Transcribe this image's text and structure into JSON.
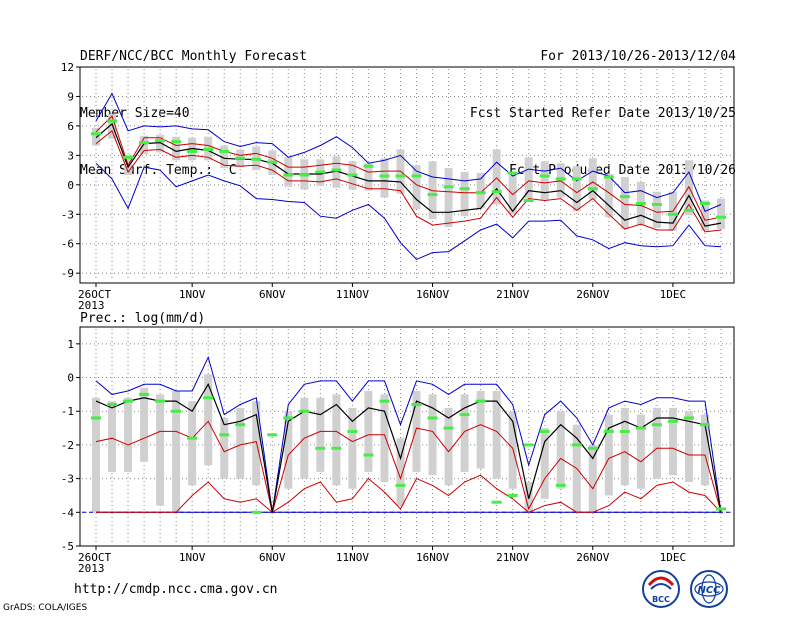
{
  "header": {
    "title": "DERF/NCC/BCC Monthly Forecast",
    "member": "Member Size=40",
    "variable": "Mean Surf. Temp.: °C",
    "period": "For 2013/10/26-2013/12/04",
    "started": "Fcst Started Refer Date 2013/10/25",
    "produced": "Fcst Produced Date 2013/10/26"
  },
  "precip_label": "Prec.: log(mm/d)",
  "footer": {
    "url": "http://cmdp.ncc.cma.gov.cn",
    "grads": "GrADS: COLA/IGES"
  },
  "logos": {
    "bcc": "BCC",
    "ncc": "NCC"
  },
  "colors": {
    "member_bar": "#d0d0d0",
    "ensemble_mean": "#000000",
    "spread_red": "#cc0000",
    "envelope_blue": "#0000cc",
    "green_marker": "#44ee44",
    "grid_dots": "#888888"
  },
  "chart_data": [
    {
      "type": "line",
      "title": "",
      "ylabel": "Mean Surf. Temp.: °C",
      "x": [
        "26OCT",
        "27OCT",
        "28OCT",
        "29OCT",
        "30OCT",
        "31OCT",
        "1NOV",
        "2NOV",
        "3NOV",
        "4NOV",
        "5NOV",
        "6NOV",
        "7NOV",
        "8NOV",
        "9NOV",
        "10NOV",
        "11NOV",
        "12NOV",
        "13NOV",
        "14NOV",
        "15NOV",
        "16NOV",
        "17NOV",
        "18NOV",
        "19NOV",
        "20NOV",
        "21NOV",
        "22NOV",
        "23NOV",
        "24NOV",
        "25NOV",
        "26NOV",
        "27NOV",
        "28NOV",
        "29NOV",
        "30NOV",
        "1DEC",
        "2DEC",
        "3DEC",
        "4DEC"
      ],
      "xtick_labels": [
        "26OCT\n2013",
        "1NOV",
        "6NOV",
        "11NOV",
        "16NOV",
        "21NOV",
        "26NOV",
        "1DEC"
      ],
      "ylim": [
        -10,
        12
      ],
      "yticks": [
        -9,
        -6,
        -3,
        0,
        3,
        6,
        9,
        12
      ],
      "grid": true,
      "series": [
        {
          "role": "upper-envelope",
          "values": [
            6.5,
            9.3,
            5.5,
            6.0,
            5.9,
            6.0,
            5.7,
            5.6,
            4.4,
            3.9,
            4.3,
            4.2,
            2.8,
            3.3,
            4.0,
            4.9,
            3.8,
            2.2,
            2.5,
            3.0,
            1.4,
            0.8,
            0.6,
            0.4,
            0.6,
            2.3,
            0.9,
            1.6,
            1.4,
            1.7,
            0.4,
            1.4,
            0.9,
            -0.8,
            -0.6,
            -1.3,
            -0.8,
            1.3,
            -2.7,
            -2.0
          ]
        },
        {
          "role": "upper-spread",
          "values": [
            5.4,
            7.0,
            2.0,
            4.8,
            4.8,
            4.0,
            4.2,
            4.0,
            3.4,
            3.0,
            3.2,
            2.7,
            1.8,
            1.8,
            2.0,
            2.2,
            2.0,
            1.3,
            1.4,
            1.4,
            0.0,
            -0.6,
            -0.7,
            -0.8,
            -0.8,
            0.7,
            -1.0,
            0.4,
            0.2,
            0.4,
            -0.8,
            0.3,
            -0.8,
            -2.0,
            -2.1,
            -2.8,
            -2.7,
            -0.2,
            -3.6,
            -3.3
          ]
        },
        {
          "role": "ensemble-mean",
          "values": [
            4.8,
            6.2,
            1.8,
            4.2,
            4.3,
            3.4,
            3.7,
            3.5,
            2.7,
            2.6,
            2.6,
            2.2,
            1.1,
            1.1,
            1.1,
            1.4,
            0.9,
            0.4,
            0.4,
            0.3,
            -1.5,
            -2.8,
            -2.8,
            -2.6,
            -2.4,
            -0.4,
            -2.7,
            -0.6,
            -0.8,
            -0.6,
            -1.8,
            -0.6,
            -2.1,
            -3.6,
            -3.1,
            -3.8,
            -3.9,
            -1.1,
            -4.2,
            -3.9
          ]
        },
        {
          "role": "lower-spread",
          "values": [
            4.2,
            5.5,
            1.3,
            3.5,
            3.6,
            2.8,
            3.0,
            2.8,
            2.0,
            1.9,
            2.0,
            1.5,
            0.4,
            0.4,
            0.3,
            0.6,
            0.1,
            -0.4,
            -0.4,
            -0.6,
            -3.2,
            -4.1,
            -3.9,
            -3.7,
            -3.4,
            -1.3,
            -3.3,
            -1.4,
            -1.6,
            -1.4,
            -2.6,
            -1.4,
            -3.0,
            -4.5,
            -4.0,
            -4.6,
            -4.6,
            -2.0,
            -4.8,
            -4.6
          ]
        },
        {
          "role": "lower-envelope",
          "values": [
            2.2,
            0.6,
            -2.4,
            1.8,
            1.5,
            -0.2,
            0.4,
            1.0,
            0.4,
            -0.1,
            -1.4,
            -1.5,
            -1.7,
            -1.8,
            -3.2,
            -3.4,
            -2.6,
            -2.0,
            -3.4,
            -5.9,
            -7.6,
            -6.9,
            -6.8,
            -5.7,
            -4.6,
            -4.0,
            -5.4,
            -3.7,
            -3.7,
            -3.6,
            -5.2,
            -5.6,
            -6.5,
            -5.9,
            -6.2,
            -6.3,
            -6.2,
            -4.1,
            -6.2,
            -6.3
          ]
        },
        {
          "role": "member-box-top",
          "values": [
            5.8,
            7.2,
            3.0,
            5.0,
            5.1,
            4.9,
            4.8,
            4.9,
            4.0,
            3.6,
            3.9,
            3.5,
            2.8,
            2.6,
            2.6,
            2.9,
            2.4,
            2.2,
            2.7,
            3.6,
            2.0,
            2.4,
            1.7,
            1.3,
            1.2,
            3.6,
            1.0,
            2.8,
            2.4,
            2.2,
            1.9,
            2.7,
            1.1,
            0.8,
            0.3,
            -0.7,
            -0.7,
            2.5,
            -1.6,
            -1.4
          ]
        },
        {
          "role": "member-box-bottom",
          "values": [
            4.0,
            4.7,
            1.0,
            3.1,
            3.3,
            2.5,
            2.5,
            2.5,
            1.7,
            1.8,
            1.5,
            1.0,
            -0.2,
            -0.5,
            -0.1,
            -0.3,
            -0.5,
            -0.6,
            -1.3,
            -0.9,
            -2.5,
            -3.5,
            -4.3,
            -3.2,
            -2.4,
            -2.0,
            -3.0,
            -1.4,
            -1.5,
            -1.3,
            -2.7,
            -1.5,
            -3.3,
            -4.5,
            -4.1,
            -4.4,
            -4.7,
            -3.1,
            -4.7,
            -4.5
          ]
        },
        {
          "role": "green-marker",
          "values": [
            5.2,
            6.5,
            2.8,
            4.3,
            4.5,
            4.4,
            3.4,
            3.6,
            3.4,
            2.7,
            2.6,
            2.3,
            1.0,
            1.0,
            1.3,
            1.5,
            1.0,
            1.9,
            0.9,
            0.9,
            0.9,
            -1.0,
            -0.2,
            -0.4,
            -0.8,
            -0.7,
            1.2,
            -1.6,
            0.9,
            0.6,
            0.6,
            -0.4,
            0.8,
            -1.2,
            -1.9,
            -2.0,
            -3.0,
            -2.6,
            -1.9,
            -3.3
          ]
        }
      ]
    },
    {
      "type": "line",
      "title": "",
      "ylabel": "Prec.: log(mm/d)",
      "x": [
        "26OCT",
        "27OCT",
        "28OCT",
        "29OCT",
        "30OCT",
        "31OCT",
        "1NOV",
        "2NOV",
        "3NOV",
        "4NOV",
        "5NOV",
        "6NOV",
        "7NOV",
        "8NOV",
        "9NOV",
        "10NOV",
        "11NOV",
        "12NOV",
        "13NOV",
        "14NOV",
        "15NOV",
        "16NOV",
        "17NOV",
        "18NOV",
        "19NOV",
        "20NOV",
        "21NOV",
        "22NOV",
        "23NOV",
        "24NOV",
        "25NOV",
        "26NOV",
        "27NOV",
        "28NOV",
        "29NOV",
        "30NOV",
        "1DEC",
        "2DEC",
        "3DEC",
        "4DEC"
      ],
      "xtick_labels": [
        "26OCT\n2013",
        "1NOV",
        "6NOV",
        "11NOV",
        "16NOV",
        "21NOV",
        "26NOV",
        "1DEC"
      ],
      "ylim": [
        -5,
        1.5
      ],
      "yticks": [
        -5,
        -4,
        -3,
        -2,
        -1,
        0,
        1
      ],
      "grid": true,
      "series": [
        {
          "role": "upper-envelope",
          "values": [
            -0.1,
            -0.5,
            -0.4,
            -0.2,
            -0.2,
            -0.4,
            -0.4,
            0.6,
            -1.1,
            -0.8,
            -0.6,
            -4.0,
            -0.8,
            -0.2,
            -0.1,
            -0.1,
            -0.7,
            -0.1,
            -0.1,
            -1.4,
            -0.1,
            -0.2,
            -0.5,
            -0.2,
            -0.2,
            -0.2,
            -0.8,
            -2.6,
            -1.1,
            -0.7,
            -1.2,
            -2.0,
            -0.9,
            -0.7,
            -0.8,
            -0.6,
            -0.6,
            -0.7,
            -0.7,
            -4.0
          ]
        },
        {
          "role": "ensemble-mean",
          "values": [
            -0.7,
            -0.9,
            -0.7,
            -0.6,
            -0.7,
            -0.7,
            -1.0,
            -0.2,
            -1.4,
            -1.3,
            -1.1,
            -4.0,
            -1.3,
            -1.0,
            -1.1,
            -0.8,
            -1.3,
            -0.9,
            -1.0,
            -2.4,
            -0.7,
            -0.9,
            -1.2,
            -0.9,
            -0.7,
            -0.7,
            -1.3,
            -3.6,
            -1.9,
            -1.4,
            -1.8,
            -2.4,
            -1.5,
            -1.3,
            -1.5,
            -1.2,
            -1.2,
            -1.3,
            -1.4,
            -4.0
          ]
        },
        {
          "role": "upper-spread",
          "values": [
            -1.9,
            -1.8,
            -2.0,
            -1.8,
            -1.6,
            -1.6,
            -1.8,
            -1.3,
            -2.2,
            -2.0,
            -1.9,
            -4.0,
            -2.3,
            -1.8,
            -1.6,
            -1.6,
            -1.9,
            -1.7,
            -1.7,
            -3.0,
            -1.5,
            -1.6,
            -2.2,
            -1.6,
            -1.4,
            -1.6,
            -2.1,
            -3.9,
            -3.0,
            -2.4,
            -2.7,
            -3.3,
            -2.4,
            -2.2,
            -2.5,
            -2.1,
            -2.1,
            -2.3,
            -2.3,
            -4.0
          ]
        },
        {
          "role": "lower-spread",
          "values": [
            -4.0,
            -4.0,
            -4.0,
            -4.0,
            -4.0,
            -4.0,
            -3.5,
            -3.1,
            -3.6,
            -3.7,
            -3.6,
            -4.0,
            -3.7,
            -3.3,
            -3.1,
            -3.7,
            -3.6,
            -3.0,
            -3.4,
            -3.9,
            -3.0,
            -3.2,
            -3.5,
            -3.1,
            -2.9,
            -3.3,
            -3.6,
            -4.0,
            -3.8,
            -3.7,
            -4.0,
            -4.0,
            -3.8,
            -3.4,
            -3.6,
            -3.2,
            -3.1,
            -3.4,
            -3.5,
            -4.0
          ]
        },
        {
          "role": "lower-envelope",
          "values": [
            -4.0,
            -4.0,
            -4.0,
            -4.0,
            -4.0,
            -4.0,
            -4.0,
            -4.0,
            -4.0,
            -4.0,
            -4.0,
            -4.0,
            -4.0,
            -4.0,
            -4.0,
            -4.0,
            -4.0,
            -4.0,
            -4.0,
            -4.0,
            -4.0,
            -4.0,
            -4.0,
            -4.0,
            -4.0,
            -4.0,
            -4.0,
            -4.0,
            -4.0,
            -4.0,
            -4.0,
            -4.0,
            -4.0,
            -4.0,
            -4.0,
            -4.0,
            -4.0,
            -4.0,
            -4.0,
            -4.0
          ]
        },
        {
          "role": "member-box-top",
          "values": [
            -0.6,
            -0.7,
            -0.6,
            -0.3,
            -0.5,
            -0.4,
            -0.7,
            0.1,
            -1.2,
            -0.9,
            -0.7,
            -4.0,
            -1.0,
            -0.6,
            -0.6,
            -0.5,
            -0.9,
            -0.4,
            -0.5,
            -1.8,
            -0.4,
            -0.5,
            -0.9,
            -0.5,
            -0.4,
            -0.4,
            -1.0,
            -3.1,
            -1.5,
            -1.0,
            -1.4,
            -2.0,
            -1.1,
            -0.9,
            -1.1,
            -0.9,
            -0.9,
            -1.0,
            -1.1,
            -4.0
          ]
        },
        {
          "role": "member-box-bottom",
          "values": [
            -4.0,
            -2.8,
            -2.8,
            -2.5,
            -3.8,
            -4.0,
            -3.2,
            -2.6,
            -3.0,
            -3.0,
            -3.2,
            -4.0,
            -3.3,
            -3.0,
            -2.8,
            -3.2,
            -3.3,
            -2.8,
            -3.1,
            -3.8,
            -2.8,
            -2.9,
            -3.2,
            -2.8,
            -2.7,
            -3.0,
            -3.3,
            -4.0,
            -3.6,
            -3.3,
            -4.0,
            -4.0,
            -3.5,
            -3.2,
            -3.3,
            -3.0,
            -2.9,
            -3.1,
            -3.2,
            -4.0
          ]
        },
        {
          "role": "green-marker",
          "values": [
            -1.2,
            -0.8,
            -0.7,
            -0.5,
            -0.7,
            -1.0,
            -1.8,
            -0.6,
            -1.7,
            -1.4,
            -4.0,
            -1.7,
            -1.2,
            -1.0,
            -2.1,
            -2.1,
            -1.6,
            -2.3,
            -0.7,
            -3.2,
            -0.8,
            -1.2,
            -1.5,
            -1.1,
            -0.7,
            -3.7,
            -3.5,
            -2.0,
            -1.6,
            -3.2,
            -2.0,
            -2.1,
            -1.6,
            -1.6,
            -1.5,
            -1.4,
            -1.3,
            -1.2,
            -1.4,
            -3.9
          ]
        }
      ]
    }
  ]
}
